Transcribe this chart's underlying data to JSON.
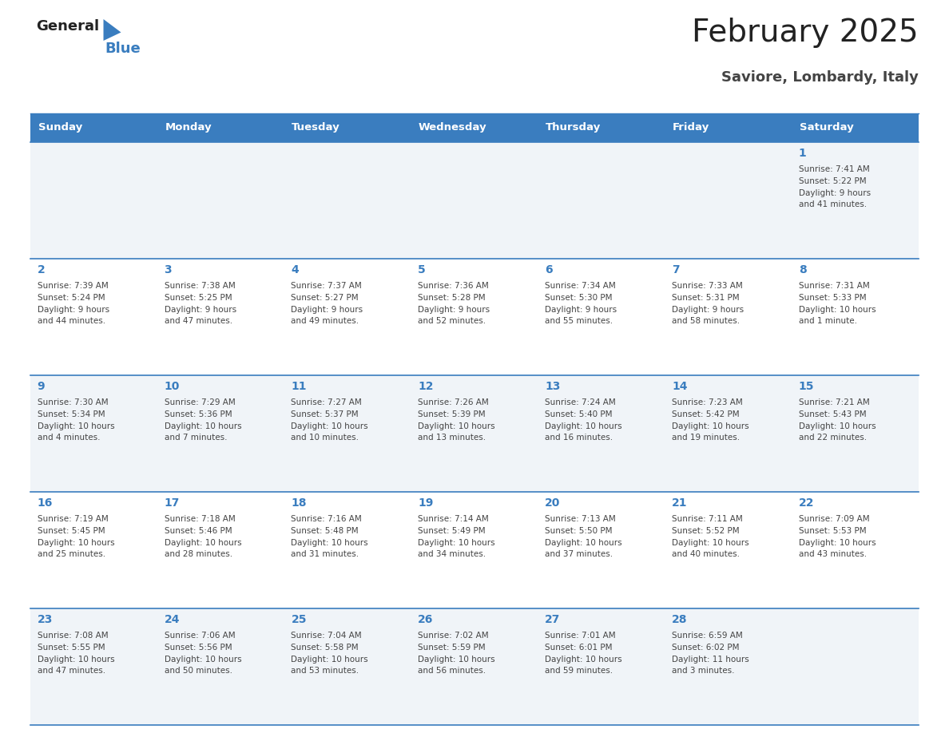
{
  "title": "February 2025",
  "subtitle": "Saviore, Lombardy, Italy",
  "days_of_week": [
    "Sunday",
    "Monday",
    "Tuesday",
    "Wednesday",
    "Thursday",
    "Friday",
    "Saturday"
  ],
  "header_bg": "#3a7dbf",
  "header_text": "#FFFFFF",
  "row_bg_odd": "#f0f4f8",
  "row_bg_even": "#FFFFFF",
  "row_border_color": "#3a7dbf",
  "day_num_color": "#3a7dbf",
  "info_text_color": "#444444",
  "title_color": "#222222",
  "subtitle_color": "#444444",
  "logo_general_color": "#222222",
  "logo_blue_color": "#3a7dbf",
  "calendar_data": [
    [
      null,
      null,
      null,
      null,
      null,
      null,
      {
        "day": 1,
        "sunrise": "7:41 AM",
        "sunset": "5:22 PM",
        "daylight": "9 hours\nand 41 minutes."
      }
    ],
    [
      {
        "day": 2,
        "sunrise": "7:39 AM",
        "sunset": "5:24 PM",
        "daylight": "9 hours\nand 44 minutes."
      },
      {
        "day": 3,
        "sunrise": "7:38 AM",
        "sunset": "5:25 PM",
        "daylight": "9 hours\nand 47 minutes."
      },
      {
        "day": 4,
        "sunrise": "7:37 AM",
        "sunset": "5:27 PM",
        "daylight": "9 hours\nand 49 minutes."
      },
      {
        "day": 5,
        "sunrise": "7:36 AM",
        "sunset": "5:28 PM",
        "daylight": "9 hours\nand 52 minutes."
      },
      {
        "day": 6,
        "sunrise": "7:34 AM",
        "sunset": "5:30 PM",
        "daylight": "9 hours\nand 55 minutes."
      },
      {
        "day": 7,
        "sunrise": "7:33 AM",
        "sunset": "5:31 PM",
        "daylight": "9 hours\nand 58 minutes."
      },
      {
        "day": 8,
        "sunrise": "7:31 AM",
        "sunset": "5:33 PM",
        "daylight": "10 hours\nand 1 minute."
      }
    ],
    [
      {
        "day": 9,
        "sunrise": "7:30 AM",
        "sunset": "5:34 PM",
        "daylight": "10 hours\nand 4 minutes."
      },
      {
        "day": 10,
        "sunrise": "7:29 AM",
        "sunset": "5:36 PM",
        "daylight": "10 hours\nand 7 minutes."
      },
      {
        "day": 11,
        "sunrise": "7:27 AM",
        "sunset": "5:37 PM",
        "daylight": "10 hours\nand 10 minutes."
      },
      {
        "day": 12,
        "sunrise": "7:26 AM",
        "sunset": "5:39 PM",
        "daylight": "10 hours\nand 13 minutes."
      },
      {
        "day": 13,
        "sunrise": "7:24 AM",
        "sunset": "5:40 PM",
        "daylight": "10 hours\nand 16 minutes."
      },
      {
        "day": 14,
        "sunrise": "7:23 AM",
        "sunset": "5:42 PM",
        "daylight": "10 hours\nand 19 minutes."
      },
      {
        "day": 15,
        "sunrise": "7:21 AM",
        "sunset": "5:43 PM",
        "daylight": "10 hours\nand 22 minutes."
      }
    ],
    [
      {
        "day": 16,
        "sunrise": "7:19 AM",
        "sunset": "5:45 PM",
        "daylight": "10 hours\nand 25 minutes."
      },
      {
        "day": 17,
        "sunrise": "7:18 AM",
        "sunset": "5:46 PM",
        "daylight": "10 hours\nand 28 minutes."
      },
      {
        "day": 18,
        "sunrise": "7:16 AM",
        "sunset": "5:48 PM",
        "daylight": "10 hours\nand 31 minutes."
      },
      {
        "day": 19,
        "sunrise": "7:14 AM",
        "sunset": "5:49 PM",
        "daylight": "10 hours\nand 34 minutes."
      },
      {
        "day": 20,
        "sunrise": "7:13 AM",
        "sunset": "5:50 PM",
        "daylight": "10 hours\nand 37 minutes."
      },
      {
        "day": 21,
        "sunrise": "7:11 AM",
        "sunset": "5:52 PM",
        "daylight": "10 hours\nand 40 minutes."
      },
      {
        "day": 22,
        "sunrise": "7:09 AM",
        "sunset": "5:53 PM",
        "daylight": "10 hours\nand 43 minutes."
      }
    ],
    [
      {
        "day": 23,
        "sunrise": "7:08 AM",
        "sunset": "5:55 PM",
        "daylight": "10 hours\nand 47 minutes."
      },
      {
        "day": 24,
        "sunrise": "7:06 AM",
        "sunset": "5:56 PM",
        "daylight": "10 hours\nand 50 minutes."
      },
      {
        "day": 25,
        "sunrise": "7:04 AM",
        "sunset": "5:58 PM",
        "daylight": "10 hours\nand 53 minutes."
      },
      {
        "day": 26,
        "sunrise": "7:02 AM",
        "sunset": "5:59 PM",
        "daylight": "10 hours\nand 56 minutes."
      },
      {
        "day": 27,
        "sunrise": "7:01 AM",
        "sunset": "6:01 PM",
        "daylight": "10 hours\nand 59 minutes."
      },
      {
        "day": 28,
        "sunrise": "6:59 AM",
        "sunset": "6:02 PM",
        "daylight": "11 hours\nand 3 minutes."
      },
      null
    ]
  ]
}
